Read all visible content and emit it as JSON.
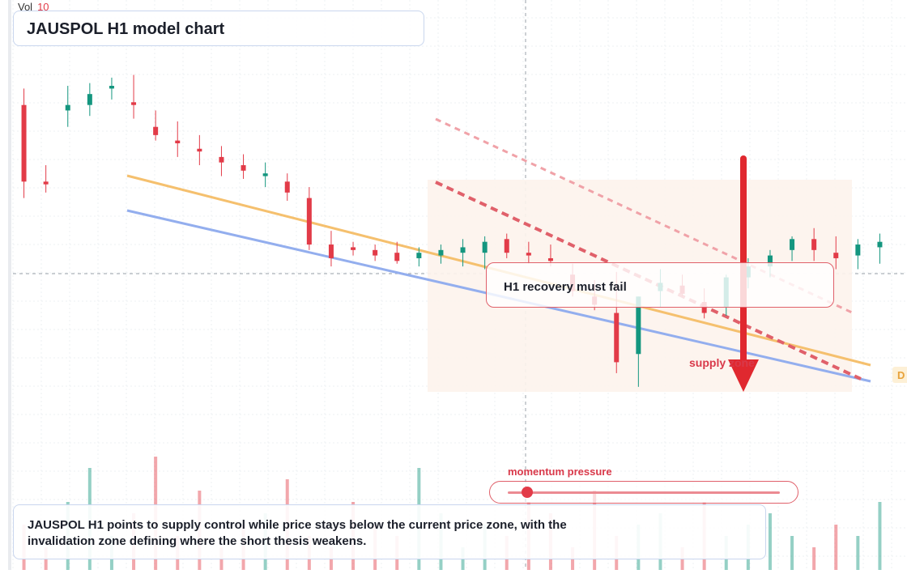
{
  "header": {
    "vol_label": "Vol",
    "vol_value": "10",
    "title": "JAUSPOL H1 model chart"
  },
  "callout": {
    "text": "H1 recovery must fail"
  },
  "zone_label": "supply zone",
  "edge_tag": "D",
  "momentum": {
    "label": "momentum pressure",
    "level": 0.07
  },
  "summary": {
    "text": "JAUSPOL H1 points to supply control while price stays below the current price zone, with the invalidation zone defining where the short thesis weakens."
  },
  "colors": {
    "up": "#14967f",
    "down": "#e23b48",
    "zone": "#fdf3ec",
    "line_orange": "#f5c06e",
    "line_blue": "#93aeee",
    "arrow": "#e0282f"
  },
  "chart_data": {
    "type": "candlestick",
    "title": "JAUSPOL H1 model chart",
    "series": [
      {
        "o": 4.4,
        "h": 5.0,
        "l": 1.0,
        "c": 1.6
      },
      {
        "o": 1.6,
        "h": 2.2,
        "l": 1.2,
        "c": 1.5
      },
      {
        "o": 4.2,
        "h": 5.1,
        "l": 3.6,
        "c": 4.4
      },
      {
        "o": 4.4,
        "h": 5.2,
        "l": 4.0,
        "c": 4.8
      },
      {
        "o": 5.0,
        "h": 5.4,
        "l": 4.6,
        "c": 5.1
      },
      {
        "o": 4.5,
        "h": 5.5,
        "l": 3.9,
        "c": 4.4
      },
      {
        "o": 3.6,
        "h": 4.2,
        "l": 3.1,
        "c": 3.3
      },
      {
        "o": 3.1,
        "h": 3.8,
        "l": 2.5,
        "c": 3.0
      },
      {
        "o": 2.8,
        "h": 3.3,
        "l": 2.2,
        "c": 2.7
      },
      {
        "o": 2.5,
        "h": 2.9,
        "l": 1.8,
        "c": 2.3
      },
      {
        "o": 2.2,
        "h": 2.6,
        "l": 1.7,
        "c": 2.0
      },
      {
        "o": 1.8,
        "h": 2.3,
        "l": 1.4,
        "c": 1.9
      },
      {
        "o": 1.6,
        "h": 1.9,
        "l": 0.9,
        "c": 1.2
      },
      {
        "o": 1.0,
        "h": 1.4,
        "l": -0.9,
        "c": -0.7
      },
      {
        "o": -0.7,
        "h": -0.2,
        "l": -1.5,
        "c": -1.2
      },
      {
        "o": -0.8,
        "h": -0.6,
        "l": -1.1,
        "c": -0.9
      },
      {
        "o": -0.9,
        "h": -0.7,
        "l": -1.3,
        "c": -1.1
      },
      {
        "o": -1.0,
        "h": -0.6,
        "l": -1.4,
        "c": -1.3
      },
      {
        "o": -1.2,
        "h": -0.8,
        "l": -1.5,
        "c": -1.0
      },
      {
        "o": -1.1,
        "h": -0.7,
        "l": -1.4,
        "c": -0.9
      },
      {
        "o": -1.0,
        "h": -0.5,
        "l": -1.5,
        "c": -0.8
      },
      {
        "o": -1.0,
        "h": -0.4,
        "l": -1.6,
        "c": -0.6
      },
      {
        "o": -0.5,
        "h": -0.3,
        "l": -1.2,
        "c": -1.0
      },
      {
        "o": -1.0,
        "h": -0.6,
        "l": -1.4,
        "c": -1.1
      },
      {
        "o": -1.2,
        "h": -0.7,
        "l": -1.5,
        "c": -1.3
      },
      {
        "o": -1.8,
        "h": -1.4,
        "l": -2.6,
        "c": -2.4
      },
      {
        "o": -2.6,
        "h": -2.0,
        "l": -3.1,
        "c": -2.9
      },
      {
        "o": -3.2,
        "h": -1.7,
        "l": -5.4,
        "c": -5.0
      },
      {
        "o": -4.7,
        "h": -2.6,
        "l": -5.9,
        "c": -2.6
      },
      {
        "o": -2.4,
        "h": -1.6,
        "l": -3.0,
        "c": -2.1
      },
      {
        "o": -2.2,
        "h": -1.8,
        "l": -2.6,
        "c": -2.5
      },
      {
        "o": -2.8,
        "h": -2.3,
        "l": -3.4,
        "c": -3.2
      },
      {
        "o": -3.0,
        "h": -1.8,
        "l": -3.3,
        "c": -1.9
      },
      {
        "o": -1.9,
        "h": -1.2,
        "l": -2.3,
        "c": -1.5
      },
      {
        "o": -1.5,
        "h": -0.9,
        "l": -1.9,
        "c": -1.1
      },
      {
        "o": -0.9,
        "h": -0.4,
        "l": -1.3,
        "c": -0.5
      },
      {
        "o": -0.5,
        "h": -0.1,
        "l": -1.3,
        "c": -0.9
      },
      {
        "o": -1.0,
        "h": -0.4,
        "l": -1.6,
        "c": -1.2
      },
      {
        "o": -1.1,
        "h": -0.5,
        "l": -1.6,
        "c": -0.7
      },
      {
        "o": -0.8,
        "h": -0.3,
        "l": -1.4,
        "c": -0.6
      }
    ],
    "volume": [
      4,
      2,
      6,
      9,
      3,
      5,
      10,
      3,
      7,
      2,
      4,
      5,
      8,
      3,
      2,
      6,
      4,
      3,
      9,
      5,
      2,
      4,
      3,
      6,
      5,
      2,
      7,
      3,
      4,
      5,
      2,
      6,
      3,
      4,
      5,
      3,
      2,
      4,
      3,
      6
    ],
    "ylim": [
      -7,
      8
    ],
    "grid": true,
    "annotations": [
      "H1 recovery must fail",
      "supply zone",
      "momentum pressure"
    ]
  }
}
